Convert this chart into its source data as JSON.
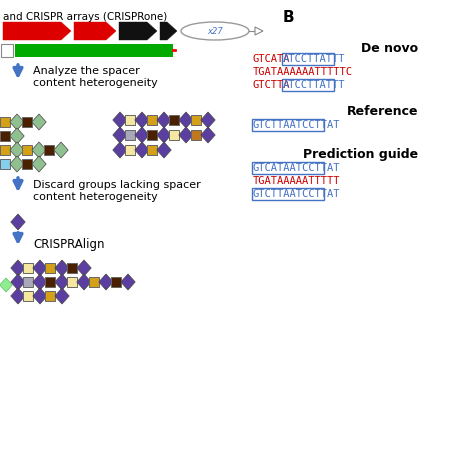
{
  "bg_color": "#ffffff",
  "title_text": "and CRISPR arrays (CRISPRone)",
  "label_B": "B",
  "step1_text": "Analyze the spacer\ncontent heterogeneity",
  "step2_text": "Discard groups lacking spacer\ncontent heterogeneity",
  "step3_text": "CRISPRAlign",
  "denovo_label": "De novo",
  "reference_label": "Reference",
  "prediction_label": "Prediction guide",
  "purple": "#5b3fa0",
  "red": "#cc0000",
  "blue": "#4472c4",
  "green_arr": "#00aa00",
  "red_arr": "#dd0000",
  "black_arr": "#111111",
  "yellow": "#d4a017",
  "light_yellow": "#f5e6a0",
  "green_sq": "#90c090",
  "brown": "#6b3000",
  "dark_brown": "#4a2000",
  "gray": "#a8a8b8",
  "orange_brown": "#c07820",
  "light_blue_sq": "#87ceeb",
  "green_diam": "#90ee90"
}
